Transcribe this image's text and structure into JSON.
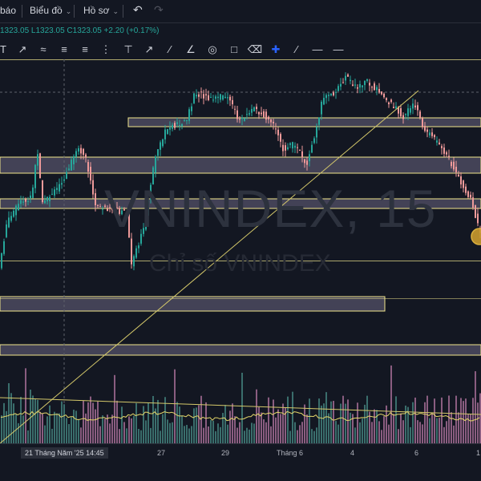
{
  "topbar": {
    "alert_label": "báo",
    "chart_menu_label": "Biểu đồ",
    "profile_menu_label": "Hồ sơ",
    "undo_icon": "undo-icon",
    "redo_icon": "redo-icon"
  },
  "legend": {
    "ohlc": "1323.05 L1323.05 C1323.05 +2.20 (+0.17%)"
  },
  "toolbar": {
    "icons": [
      "cursor-icon",
      "trend-line-icon",
      "brush-icon",
      "parallel-channel-icon",
      "pitchfork-icon",
      "fib-channel-icon",
      "fib-retracement-icon",
      "horizontal-line-icon",
      "arrow-icon",
      "ruler-icon",
      "angle-icon",
      "circle-icon",
      "comment-icon",
      "eraser-icon",
      "crosshair-icon",
      "line-segment-icon",
      "price-line-icon",
      "horizontal-ray-icon"
    ]
  },
  "watermark": {
    "symbol": "VNINDEX, 15",
    "description": "Chỉ số VNINDEX"
  },
  "time_axis": {
    "cursor_label": "21 Tháng Năm '25   14:45",
    "labels": [
      "27",
      "29",
      "Tháng 6",
      "4",
      "6",
      "1"
    ]
  },
  "colors": {
    "background": "#131722",
    "up": "#26a69a",
    "down": "#ef9a9a",
    "zone_fill": "#9f93b8",
    "zone_border": "#f0e68c",
    "trend_line": "#d4c86a",
    "volume_up": "#3a6e6c",
    "volume_down": "#8a5d80"
  }
}
